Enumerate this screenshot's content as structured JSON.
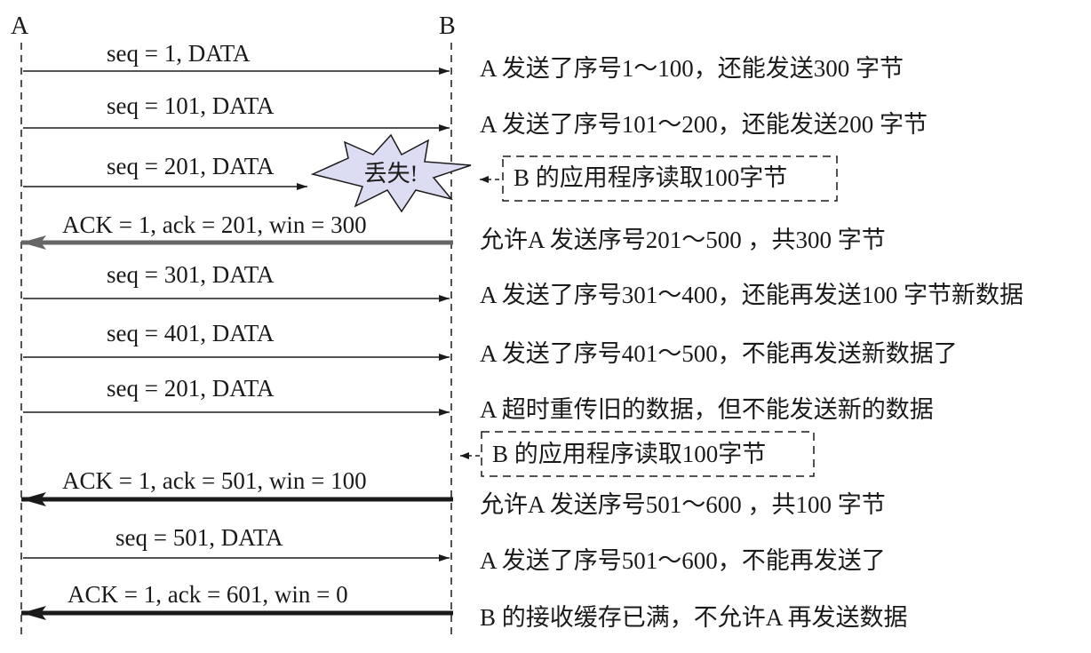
{
  "hosts": {
    "a": "A",
    "b": "B"
  },
  "messages": [
    {
      "label": "seq = 1, DATA",
      "note": "A 发送了序号1～100，还能发送300 字节"
    },
    {
      "label": "seq = 101, DATA",
      "note": "A 发送了序号101～200，还能发送200 字节"
    },
    {
      "label": "seq = 201, DATA",
      "note": ""
    },
    {
      "label": "ACK = 1, ack = 201, win = 300",
      "note": "允许A 发送序号201～500 ，共300 字节"
    },
    {
      "label": "seq = 301, DATA",
      "note": "A 发送了序号301～400，还能再发送100 字节新数据"
    },
    {
      "label": "seq = 401, DATA",
      "note": "A 发送了序号401～500，不能再发送新数据了"
    },
    {
      "label": "seq = 201, DATA",
      "note": "A 超时重传旧的数据，但不能发送新的数据"
    },
    {
      "label": "ACK = 1, ack = 501, win = 100",
      "note": "允许A 发送序号501～600 ，共100 字节"
    },
    {
      "label": "seq = 501, DATA",
      "note": "A 发送了序号501～600，不能再发送了"
    },
    {
      "label": "ACK = 1, ack = 601, win = 0",
      "note": "B 的接收缓存已满，不允许A 再发送数据"
    }
  ],
  "lost_label": "丢失!",
  "app_reads": [
    {
      "text": "B 的应用程序读取100字节"
    },
    {
      "text": "B 的应用程序读取100字节"
    }
  ]
}
